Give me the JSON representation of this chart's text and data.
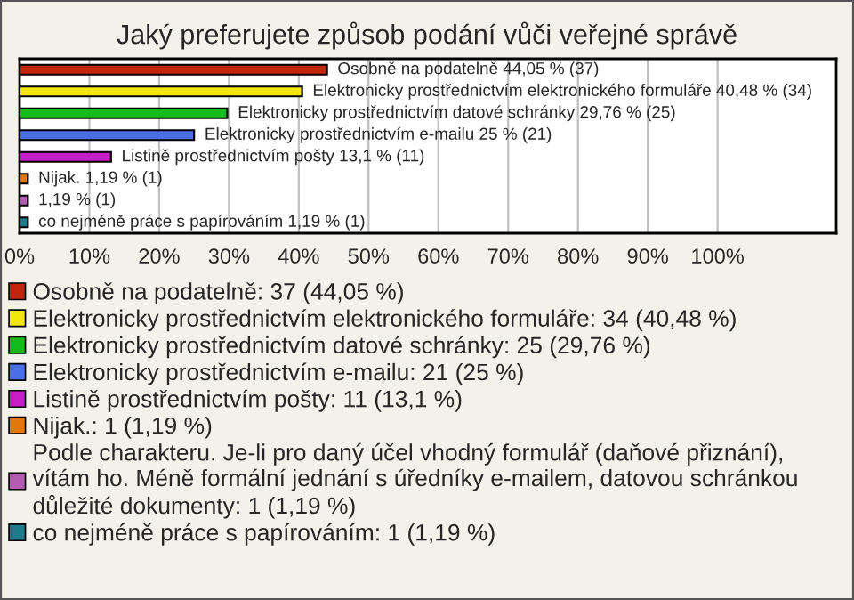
{
  "chart_data": {
    "type": "bar",
    "orientation": "horizontal",
    "title": "Jaký preferujete způsob podání vůči veřejné správě",
    "categories": [
      null,
      null,
      null,
      null,
      null,
      null,
      null,
      null
    ],
    "series": [
      {
        "name": "Osobně na podatelně: 37 (44,05 %)",
        "color": "#c0260c",
        "values": [
          44.05,
          null,
          null,
          null,
          null,
          null,
          null,
          null
        ],
        "value_labels": [
          "Osobně na podatelně 44,05 % (37)",
          null,
          null,
          null,
          null,
          null,
          null,
          null
        ]
      },
      {
        "name": "Elektronicky prostřednictvím elektronického formuláře: 34 (40,48 %)",
        "color": "#f4e60c",
        "values": [
          null,
          40.48,
          null,
          null,
          null,
          null,
          null,
          null
        ],
        "value_labels": [
          null,
          "Elektronicky prostřednictvím elektronického formuláře 40,48 % (34)",
          null,
          null,
          null,
          null,
          null,
          null
        ]
      },
      {
        "name": "Elektronicky prostřednictvím datové schránky: 25 (29,76 %)",
        "color": "#14bb1a",
        "values": [
          null,
          null,
          29.76,
          null,
          null,
          null,
          null,
          null
        ],
        "value_labels": [
          null,
          null,
          "Elektronicky prostřednictvím datové schránky 29,76 % (25)",
          null,
          null,
          null,
          null,
          null
        ]
      },
      {
        "name": "Elektronicky prostřednictvím e-mailu: 21 (25 %)",
        "color": "#4a6ee6",
        "values": [
          null,
          null,
          null,
          25,
          null,
          null,
          null,
          null
        ],
        "value_labels": [
          null,
          null,
          null,
          "Elektronicky prostřednictvím e-mailu 25 % (21)",
          null,
          null,
          null,
          null
        ]
      },
      {
        "name": "Listině prostřednictvím pošty: 11 (13,1 %)",
        "color": "#c41ec4",
        "values": [
          null,
          null,
          null,
          null,
          13.1,
          null,
          null,
          null
        ],
        "value_labels": [
          null,
          null,
          null,
          null,
          "Listině prostřednictvím pošty 13,1 % (11)",
          null,
          null,
          null
        ]
      },
      {
        "name": "Nijak.: 1 (1,19 %)",
        "color": "#e0780e",
        "values": [
          null,
          null,
          null,
          null,
          null,
          1.19,
          null,
          null
        ],
        "value_labels": [
          null,
          null,
          null,
          null,
          null,
          "Nijak. 1,19 % (1)",
          null,
          null
        ]
      },
      {
        "name": "Podle charakteru. Je-li pro daný účel vhodný formulář (daňové přiznání),\nvítám ho. Méně formální jednání s úředníky e-mailem, datovou schránkou\ndůležité dokumenty: 1 (1,19 %)",
        "color": "#b45cb4",
        "values": [
          null,
          null,
          null,
          null,
          null,
          null,
          1.19,
          null
        ],
        "value_labels": [
          null,
          null,
          null,
          null,
          null,
          null,
          "1,19 % (1)",
          null
        ]
      },
      {
        "name": "co nejméně práce s papírováním: 1 (1,19 %)",
        "color": "#1e7a8c",
        "values": [
          null,
          null,
          null,
          null,
          null,
          null,
          null,
          1.19
        ],
        "value_labels": [
          null,
          null,
          null,
          null,
          null,
          null,
          null,
          "co nejméně práce s papírováním 1,19 % (1)"
        ]
      }
    ],
    "xlim": [
      0,
      117
    ],
    "xticks": [
      {
        "value": 0,
        "label": "0%"
      },
      {
        "value": 10,
        "label": "10%"
      },
      {
        "value": 20,
        "label": "20%"
      },
      {
        "value": 30,
        "label": "30%"
      },
      {
        "value": 40,
        "label": "40%"
      },
      {
        "value": 50,
        "label": "50%"
      },
      {
        "value": 60,
        "label": "60%"
      },
      {
        "value": 70,
        "label": "70%"
      },
      {
        "value": 80,
        "label": "80%"
      },
      {
        "value": 90,
        "label": "90%"
      },
      {
        "value": 100,
        "label": "100%"
      }
    ],
    "grid": "x",
    "legend": "bottom",
    "tick_labels": "x"
  }
}
